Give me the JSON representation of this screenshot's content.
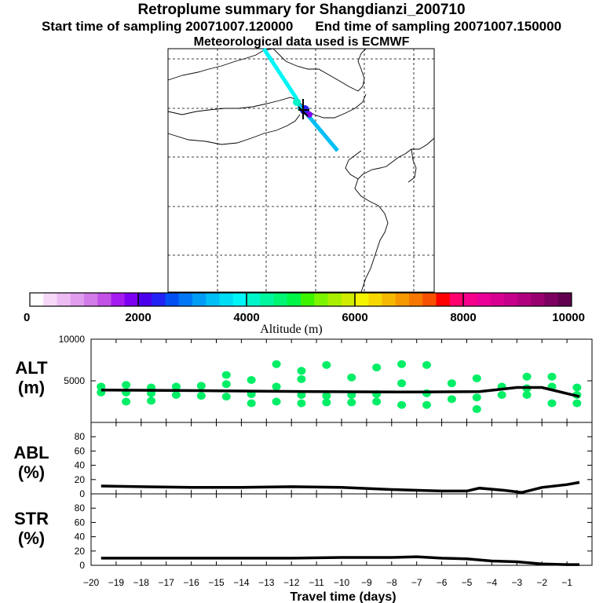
{
  "header": {
    "title": "Retroplume summary for Shangdianzi_200710",
    "start_label": "Start time of sampling 20071007.120000",
    "end_label": "End time of sampling 20071007.150000",
    "met_label": "Meteorological data used is ECMWF"
  },
  "colorbar": {
    "label": "Altitude (m)",
    "ticks": [
      "0",
      "2000",
      "4000",
      "6000",
      "8000",
      "10000"
    ],
    "range": [
      0,
      10000
    ],
    "colors": [
      "#ffffff",
      "#f6d8f8",
      "#ecbcf2",
      "#e19eee",
      "#d27ce9",
      "#c352e6",
      "#a41cf0",
      "#7c00f2",
      "#4a00ec",
      "#2222f6",
      "#0050f4",
      "#0078f6",
      "#009cf6",
      "#00bef6",
      "#00def6",
      "#00f6f6",
      "#00f6ca",
      "#00f69e",
      "#00f672",
      "#00f646",
      "#3cf400",
      "#7cf400",
      "#a8f000",
      "#d0ec00",
      "#f4f400",
      "#f6d800",
      "#f6b800",
      "#f69800",
      "#f67800",
      "#f65000",
      "#ff0000",
      "#ff006e",
      "#f6008c",
      "#ea0096",
      "#d80090",
      "#c6008a",
      "#b00080",
      "#980070",
      "#7c0060",
      "#60004e"
    ]
  },
  "map": {
    "alt": "Map of northern China and Mongolia with retroplume trajectory near Shangdianzi"
  },
  "chart_data": [
    {
      "type": "scatter",
      "name": "ALT",
      "ylabel": "ALT (m)",
      "ylim": [
        0,
        10000
      ],
      "yticks": [
        5000,
        10000
      ],
      "xlim": [
        -20,
        0
      ],
      "line": {
        "x": [
          -19.6,
          -15,
          -11,
          -7,
          -4.5,
          -3,
          -2,
          -0.5
        ],
        "y": [
          3900,
          3800,
          3700,
          3650,
          3700,
          4200,
          4200,
          3100
        ]
      },
      "points": [
        {
          "x": -19.6,
          "y": 4300
        },
        {
          "x": -19.6,
          "y": 3600
        },
        {
          "x": -18.6,
          "y": 4500
        },
        {
          "x": -18.6,
          "y": 3600
        },
        {
          "x": -18.6,
          "y": 2500
        },
        {
          "x": -17.6,
          "y": 4200
        },
        {
          "x": -17.6,
          "y": 3500
        },
        {
          "x": -17.6,
          "y": 2600
        },
        {
          "x": -16.6,
          "y": 4300
        },
        {
          "x": -16.6,
          "y": 3300
        },
        {
          "x": -15.6,
          "y": 4400
        },
        {
          "x": -15.6,
          "y": 3200
        },
        {
          "x": -14.6,
          "y": 4600
        },
        {
          "x": -14.6,
          "y": 3100
        },
        {
          "x": -14.6,
          "y": 5700
        },
        {
          "x": -13.6,
          "y": 5100
        },
        {
          "x": -13.6,
          "y": 3400
        },
        {
          "x": -13.6,
          "y": 2300
        },
        {
          "x": -12.6,
          "y": 7000
        },
        {
          "x": -12.6,
          "y": 4300
        },
        {
          "x": -12.6,
          "y": 2500
        },
        {
          "x": -11.6,
          "y": 6200
        },
        {
          "x": -11.6,
          "y": 5200
        },
        {
          "x": -11.6,
          "y": 3300
        },
        {
          "x": -11.6,
          "y": 2300
        },
        {
          "x": -10.6,
          "y": 6900
        },
        {
          "x": -10.6,
          "y": 3200
        },
        {
          "x": -10.6,
          "y": 2400
        },
        {
          "x": -9.6,
          "y": 5400
        },
        {
          "x": -9.6,
          "y": 3300
        },
        {
          "x": -9.6,
          "y": 2400
        },
        {
          "x": -8.6,
          "y": 6600
        },
        {
          "x": -8.6,
          "y": 3400
        },
        {
          "x": -8.6,
          "y": 2500
        },
        {
          "x": -7.6,
          "y": 7000
        },
        {
          "x": -7.6,
          "y": 4700
        },
        {
          "x": -7.6,
          "y": 2100
        },
        {
          "x": -6.6,
          "y": 6900
        },
        {
          "x": -6.6,
          "y": 3500
        },
        {
          "x": -6.6,
          "y": 2100
        },
        {
          "x": -5.6,
          "y": 4700
        },
        {
          "x": -5.6,
          "y": 2800
        },
        {
          "x": -4.6,
          "y": 5300
        },
        {
          "x": -4.6,
          "y": 3000
        },
        {
          "x": -4.6,
          "y": 1600
        },
        {
          "x": -3.6,
          "y": 4300
        },
        {
          "x": -3.6,
          "y": 3300
        },
        {
          "x": -2.6,
          "y": 5500
        },
        {
          "x": -2.6,
          "y": 4100
        },
        {
          "x": -2.6,
          "y": 3300
        },
        {
          "x": -1.6,
          "y": 5500
        },
        {
          "x": -1.6,
          "y": 4300
        },
        {
          "x": -1.6,
          "y": 2300
        },
        {
          "x": -0.6,
          "y": 4200
        },
        {
          "x": -0.6,
          "y": 3300
        },
        {
          "x": -0.6,
          "y": 2300
        }
      ]
    },
    {
      "type": "line",
      "name": "ABL",
      "ylabel": "ABL (%)",
      "ylim": [
        0,
        100
      ],
      "yticks": [
        0,
        20,
        40,
        60,
        80
      ],
      "xlim": [
        -20,
        0
      ],
      "x": [
        -19.6,
        -18,
        -16,
        -14,
        -12,
        -10,
        -8,
        -6,
        -5,
        -4.5,
        -3.5,
        -2.8,
        -2,
        -1,
        -0.5
      ],
      "y": [
        11,
        10,
        9,
        9,
        10,
        9,
        6,
        4,
        4,
        8,
        5,
        2,
        9,
        13,
        16
      ]
    },
    {
      "type": "line",
      "name": "STR",
      "ylabel": "STR (%)",
      "ylim": [
        0,
        100
      ],
      "yticks": [
        0,
        20,
        40,
        60,
        80
      ],
      "xlim": [
        -20,
        0
      ],
      "xlabel": "Travel time (days)",
      "xticks": [
        -20,
        -19,
        -18,
        -17,
        -16,
        -15,
        -14,
        -13,
        -12,
        -11,
        -10,
        -9,
        -8,
        -7,
        -6,
        -5,
        -4,
        -3,
        -2,
        -1
      ],
      "x": [
        -19.6,
        -15,
        -12,
        -10,
        -8,
        -7,
        -6,
        -5,
        -4,
        -3,
        -2,
        -1,
        -0.5
      ],
      "y": [
        10,
        10,
        10,
        11,
        11,
        12,
        10,
        9,
        6,
        5,
        2,
        1,
        1
      ]
    }
  ]
}
